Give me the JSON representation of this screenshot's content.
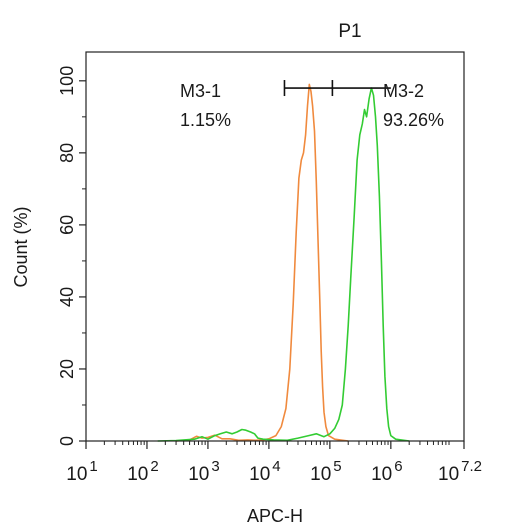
{
  "chart_data": {
    "type": "line",
    "title": "P1",
    "title_color": "#36c21d",
    "xlabel": "APC-H",
    "ylabel": "Count  (%)",
    "x_scale": "log10",
    "xlim": [
      10,
      15848932
    ],
    "ylim": [
      0,
      108
    ],
    "x_ticks": [
      {
        "value": 10,
        "base": "10",
        "exp": "1"
      },
      {
        "value": 100,
        "base": "10",
        "exp": "2"
      },
      {
        "value": 1000,
        "base": "10",
        "exp": "3"
      },
      {
        "value": 10000,
        "base": "10",
        "exp": "4"
      },
      {
        "value": 100000,
        "base": "10",
        "exp": "5"
      },
      {
        "value": 1000000,
        "base": "10",
        "exp": "6"
      },
      {
        "value": 15848932,
        "base": "10",
        "exp": "7.2"
      }
    ],
    "y_ticks": [
      0,
      20,
      40,
      60,
      80,
      100
    ],
    "gate": {
      "left_x": 18000,
      "mid_x": 110000,
      "right_x": 1000000,
      "y": 98,
      "label_left": "M3-1",
      "pct_left": "1.15%",
      "label_right": "M3-2",
      "pct_right": "93.26%"
    },
    "series": [
      {
        "color": "#f08a3e",
        "points": [
          [
            300,
            0
          ],
          [
            500,
            0.3
          ],
          [
            650,
            1.3
          ],
          [
            800,
            0.8
          ],
          [
            1000,
            1.0
          ],
          [
            1300,
            1.6
          ],
          [
            1700,
            0.6
          ],
          [
            2300,
            0.6
          ],
          [
            3200,
            0.2
          ],
          [
            4500,
            0.3
          ],
          [
            6000,
            0.2
          ],
          [
            8000,
            0.3
          ],
          [
            10000,
            0.6
          ],
          [
            13000,
            1.5
          ],
          [
            16000,
            4
          ],
          [
            19000,
            9
          ],
          [
            22000,
            20
          ],
          [
            25000,
            38
          ],
          [
            28000,
            58
          ],
          [
            31000,
            73
          ],
          [
            34000,
            78
          ],
          [
            37000,
            80
          ],
          [
            40000,
            85
          ],
          [
            43000,
            93
          ],
          [
            46000,
            99
          ],
          [
            49000,
            97
          ],
          [
            52000,
            93
          ],
          [
            56000,
            86
          ],
          [
            60000,
            72
          ],
          [
            64000,
            55
          ],
          [
            68000,
            40
          ],
          [
            72000,
            25
          ],
          [
            76000,
            15
          ],
          [
            80000,
            8
          ],
          [
            86000,
            4
          ],
          [
            95000,
            1.5
          ],
          [
            120000,
            0.5
          ],
          [
            200000,
            0
          ]
        ]
      },
      {
        "color": "#33cc33",
        "points": [
          [
            150,
            0
          ],
          [
            300,
            0.1
          ],
          [
            600,
            0.5
          ],
          [
            800,
            1.2
          ],
          [
            1000,
            0.5
          ],
          [
            1300,
            1.5
          ],
          [
            1600,
            2.0
          ],
          [
            2000,
            2.5
          ],
          [
            2500,
            2.0
          ],
          [
            3000,
            2.5
          ],
          [
            3600,
            3.2
          ],
          [
            4200,
            3.0
          ],
          [
            5000,
            2.5
          ],
          [
            5800,
            2.0
          ],
          [
            6600,
            0.8
          ],
          [
            8000,
            0.5
          ],
          [
            12000,
            0.3
          ],
          [
            20000,
            0.2
          ],
          [
            30000,
            0.8
          ],
          [
            45000,
            1.5
          ],
          [
            60000,
            2.0
          ],
          [
            80000,
            1.2
          ],
          [
            100000,
            2.0
          ],
          [
            120000,
            3.5
          ],
          [
            140000,
            6
          ],
          [
            160000,
            10
          ],
          [
            180000,
            20
          ],
          [
            200000,
            32
          ],
          [
            220000,
            45
          ],
          [
            250000,
            62
          ],
          [
            280000,
            78
          ],
          [
            310000,
            85
          ],
          [
            340000,
            88
          ],
          [
            370000,
            92
          ],
          [
            400000,
            90
          ],
          [
            440000,
            95
          ],
          [
            480000,
            98
          ],
          [
            520000,
            96
          ],
          [
            560000,
            90
          ],
          [
            600000,
            82
          ],
          [
            650000,
            68
          ],
          [
            700000,
            50
          ],
          [
            750000,
            32
          ],
          [
            800000,
            18
          ],
          [
            860000,
            9
          ],
          [
            920000,
            4
          ],
          [
            1000000,
            1.5
          ],
          [
            1200000,
            0.5
          ],
          [
            2000000,
            0
          ]
        ]
      }
    ]
  }
}
